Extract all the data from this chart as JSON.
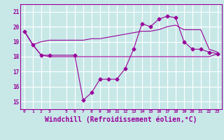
{
  "background_color": "#c8e8e8",
  "grid_color": "#ffffff",
  "line_color": "#990099",
  "xlabel": "Windchill (Refroidissement éolien,°C)",
  "xlabel_fontsize": 7,
  "yticks": [
    15,
    16,
    17,
    18,
    19,
    20,
    21
  ],
  "xticks": [
    0,
    1,
    2,
    3,
    5,
    6,
    7,
    8,
    9,
    10,
    11,
    12,
    13,
    14,
    15,
    16,
    17,
    18,
    19,
    20,
    21,
    22,
    23
  ],
  "xlim": [
    -0.5,
    23.5
  ],
  "ylim": [
    14.5,
    21.5
  ],
  "line1_x": [
    0,
    1,
    2,
    3,
    6,
    7,
    8,
    9,
    10,
    11,
    12,
    13,
    14,
    15,
    16,
    17,
    18,
    19,
    20,
    21,
    22,
    23
  ],
  "line1_y": [
    19.7,
    18.8,
    18.1,
    18.1,
    18.1,
    15.1,
    15.6,
    16.5,
    16.5,
    16.5,
    17.2,
    18.5,
    20.2,
    20.0,
    20.5,
    20.7,
    20.6,
    19.0,
    18.5,
    18.5,
    18.3,
    18.2
  ],
  "line2_x": [
    0,
    1,
    2,
    3,
    6,
    7,
    8,
    9,
    10,
    11,
    12,
    13,
    14,
    15,
    16,
    17,
    18,
    19,
    20,
    21,
    22,
    23
  ],
  "line2_y": [
    19.7,
    18.8,
    18.1,
    18.0,
    18.0,
    18.0,
    18.0,
    18.0,
    18.0,
    18.0,
    18.0,
    18.0,
    18.0,
    18.0,
    18.0,
    18.0,
    18.0,
    18.0,
    18.0,
    18.0,
    18.0,
    18.2
  ],
  "line3_x": [
    0,
    1,
    2,
    3,
    6,
    7,
    8,
    9,
    10,
    11,
    12,
    13,
    14,
    15,
    16,
    17,
    18,
    19,
    20,
    21,
    22,
    23
  ],
  "line3_y": [
    19.7,
    18.8,
    19.0,
    19.1,
    19.1,
    19.1,
    19.2,
    19.2,
    19.3,
    19.4,
    19.5,
    19.6,
    19.7,
    19.7,
    19.8,
    20.0,
    20.1,
    19.8,
    19.8,
    19.8,
    18.5,
    18.3
  ]
}
